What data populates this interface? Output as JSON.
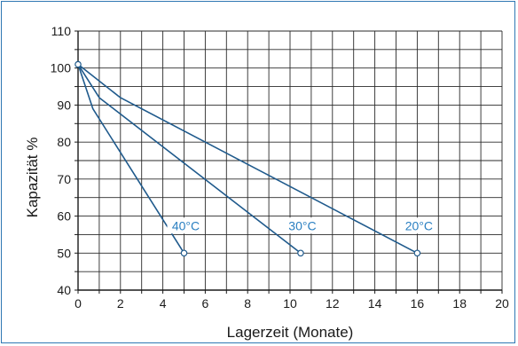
{
  "chart_data": {
    "type": "line",
    "xlabel": "Lagerzeit (Monate)",
    "ylabel": "Kapazität %",
    "xlim": [
      0,
      20
    ],
    "ylim": [
      40,
      110
    ],
    "x_ticks": [
      0,
      2,
      4,
      6,
      8,
      10,
      12,
      14,
      16,
      18,
      20
    ],
    "y_ticks": [
      40,
      50,
      60,
      70,
      80,
      90,
      100,
      110
    ],
    "x_tick_labels": [
      "0",
      "2",
      "4",
      "6",
      "8",
      "10",
      "12",
      "14",
      "16",
      "18",
      "20"
    ],
    "y_tick_labels": [
      "40",
      "50",
      "60",
      "70",
      "80",
      "90",
      "100",
      "110"
    ],
    "grid": true,
    "line_color": "#1f5a8c",
    "label_color": "#2a7fc1",
    "frame_color": "#2f78b3",
    "series": [
      {
        "name": "40°C",
        "x": [
          0,
          0.7,
          5
        ],
        "y": [
          101,
          89,
          50
        ]
      },
      {
        "name": "30°C",
        "x": [
          0,
          1,
          10.5
        ],
        "y": [
          101,
          92,
          50
        ]
      },
      {
        "name": "20°C",
        "x": [
          0,
          2,
          16
        ],
        "y": [
          101,
          92,
          50
        ]
      }
    ]
  }
}
